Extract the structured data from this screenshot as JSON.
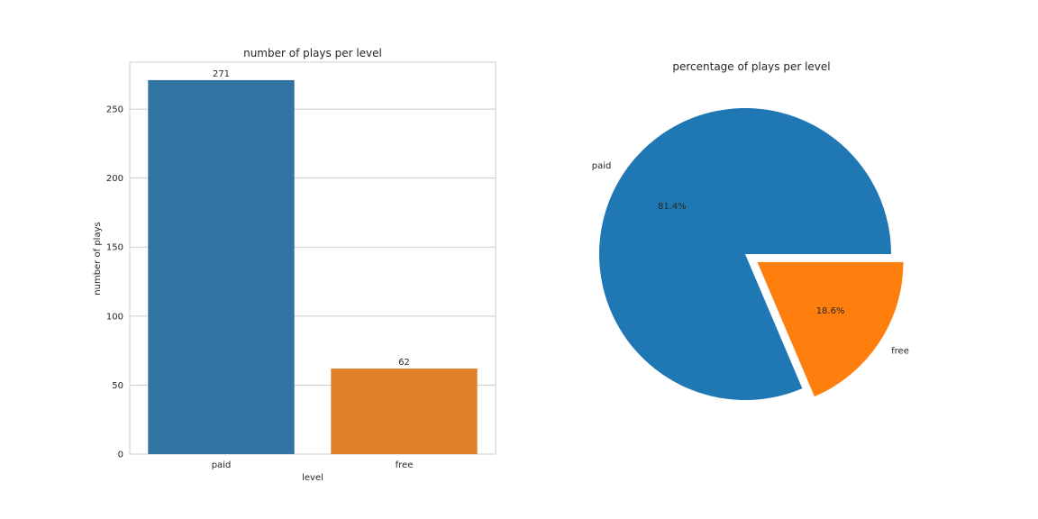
{
  "chart_data": [
    {
      "type": "bar",
      "title": "number of plays per level",
      "xlabel": "level",
      "ylabel": "number of plays",
      "categories": [
        "paid",
        "free"
      ],
      "values": [
        271,
        62
      ],
      "data_labels": [
        "271",
        "62"
      ],
      "ylim": [
        0,
        284
      ],
      "yticks": [
        0,
        50,
        100,
        150,
        200,
        250
      ],
      "grid": true,
      "colors": [
        "#3274a1",
        "#e1812c"
      ]
    },
    {
      "type": "pie",
      "title": "percentage of plays per level",
      "labels": [
        "paid",
        "free"
      ],
      "values": [
        81.4,
        18.6
      ],
      "autopct": [
        "81.4%",
        "18.6%"
      ],
      "explode": [
        0,
        0.1
      ],
      "colors": [
        "#1f77b4",
        "#ff7f0e"
      ]
    }
  ]
}
